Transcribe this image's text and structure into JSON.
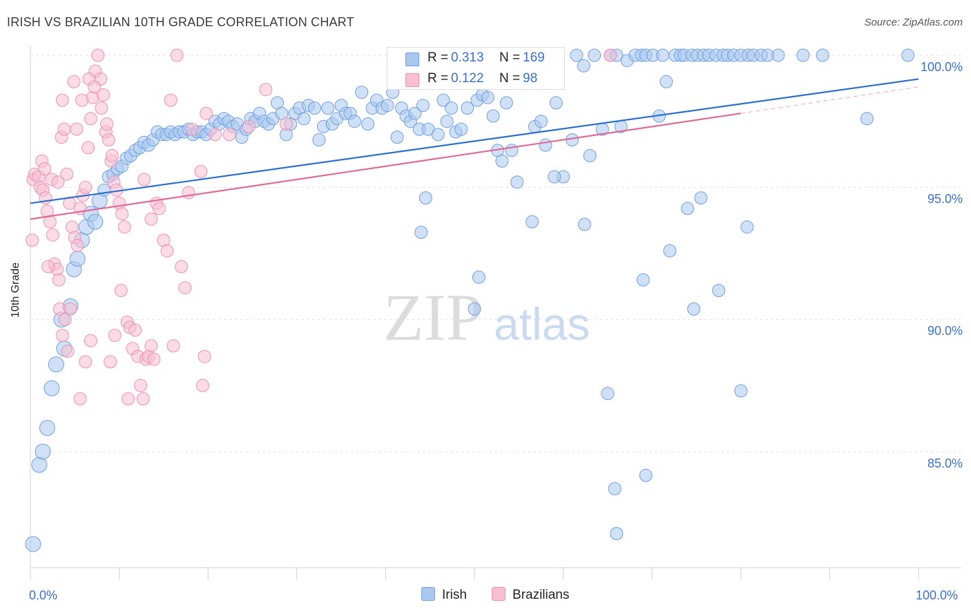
{
  "header": {
    "title": "IRISH VS BRAZILIAN 10TH GRADE CORRELATION CHART",
    "source": "Source: ZipAtlas.com"
  },
  "watermark": {
    "zip": "ZIP",
    "atlas": "atlas"
  },
  "legend": {
    "r_label": "R =",
    "n_label": "N =",
    "irish": {
      "r": "0.313",
      "n": "169"
    },
    "brazilians": {
      "r": "0.122",
      "n": "98"
    }
  },
  "colors": {
    "irish_fill": "#a9c8f0",
    "irish_stroke": "#6f9fe0",
    "irish_line": "#2a6fd0",
    "braz_fill": "#f8bfd2",
    "braz_stroke": "#ee8fb0",
    "braz_line": "#e06a95",
    "tick_text": "#3b6fcf",
    "grid": "#e3e3e3"
  },
  "chart_data": {
    "type": "scatter",
    "title": "IRISH VS BRAZILIAN 10TH GRADE CORRELATION CHART",
    "xlabel": "",
    "ylabel": "10th Grade",
    "xlim": [
      0,
      100
    ],
    "ylim": [
      80.0,
      100.8
    ],
    "x_ticks_labeled": [
      "0.0%",
      "100.0%"
    ],
    "y_ticks": [
      {
        "value": 100.0,
        "label": "100.0%"
      },
      {
        "value": 95.0,
        "label": "95.0%"
      },
      {
        "value": 90.0,
        "label": "90.0%"
      },
      {
        "value": 85.0,
        "label": "85.0%"
      }
    ],
    "legend_position": "top-center",
    "grid": "horizontal dashed",
    "series": [
      {
        "name": "Irish",
        "r": 0.313,
        "n": 169,
        "trend": {
          "x": [
            0,
            100
          ],
          "y": [
            94.4,
            99.1
          ]
        },
        "points": [
          [
            0.3,
            81.5
          ],
          [
            1.0,
            84.5
          ],
          [
            1.4,
            85.0
          ],
          [
            1.9,
            85.9
          ],
          [
            2.4,
            87.4
          ],
          [
            2.9,
            88.3
          ],
          [
            3.5,
            90.0
          ],
          [
            3.8,
            88.9
          ],
          [
            4.5,
            90.5
          ],
          [
            4.9,
            91.9
          ],
          [
            5.3,
            92.3
          ],
          [
            5.8,
            93.0
          ],
          [
            6.3,
            93.5
          ],
          [
            6.8,
            94.0
          ],
          [
            7.3,
            93.7
          ],
          [
            7.8,
            94.5
          ],
          [
            8.3,
            94.9
          ],
          [
            8.8,
            95.4
          ],
          [
            9.3,
            95.5
          ],
          [
            9.8,
            95.7
          ],
          [
            10.3,
            95.8
          ],
          [
            10.8,
            96.1
          ],
          [
            11.3,
            96.2
          ],
          [
            11.8,
            96.4
          ],
          [
            12.3,
            96.5
          ],
          [
            12.8,
            96.7
          ],
          [
            13.3,
            96.6
          ],
          [
            13.8,
            96.8
          ],
          [
            14.3,
            97.1
          ],
          [
            14.8,
            97.0
          ],
          [
            15.3,
            97.0
          ],
          [
            15.8,
            97.1
          ],
          [
            16.3,
            97.0
          ],
          [
            16.8,
            97.1
          ],
          [
            17.3,
            97.1
          ],
          [
            17.8,
            97.2
          ],
          [
            18.3,
            97.0
          ],
          [
            18.8,
            97.1
          ],
          [
            19.3,
            97.1
          ],
          [
            19.8,
            97.0
          ],
          [
            20.3,
            97.2
          ],
          [
            20.8,
            97.5
          ],
          [
            21.3,
            97.4
          ],
          [
            21.8,
            97.6
          ],
          [
            22.3,
            97.5
          ],
          [
            22.8,
            97.3
          ],
          [
            23.3,
            97.4
          ],
          [
            23.8,
            96.9
          ],
          [
            24.3,
            97.2
          ],
          [
            24.8,
            97.6
          ],
          [
            25.3,
            97.5
          ],
          [
            25.8,
            97.8
          ],
          [
            26.3,
            97.5
          ],
          [
            26.8,
            97.4
          ],
          [
            27.3,
            97.6
          ],
          [
            27.8,
            98.2
          ],
          [
            28.3,
            97.8
          ],
          [
            28.8,
            97.0
          ],
          [
            29.3,
            97.4
          ],
          [
            29.8,
            97.8
          ],
          [
            30.3,
            98.0
          ],
          [
            30.8,
            97.6
          ],
          [
            31.3,
            98.1
          ],
          [
            32.0,
            98.0
          ],
          [
            32.5,
            96.8
          ],
          [
            33.0,
            97.3
          ],
          [
            33.5,
            98.0
          ],
          [
            34.0,
            97.4
          ],
          [
            34.5,
            97.6
          ],
          [
            35.0,
            98.1
          ],
          [
            35.5,
            97.8
          ],
          [
            36.0,
            97.8
          ],
          [
            36.5,
            97.5
          ],
          [
            37.3,
            98.6
          ],
          [
            38.0,
            97.4
          ],
          [
            38.5,
            98.0
          ],
          [
            39.0,
            98.3
          ],
          [
            39.6,
            98.0
          ],
          [
            40.2,
            98.1
          ],
          [
            40.8,
            98.6
          ],
          [
            41.3,
            96.9
          ],
          [
            41.8,
            98.0
          ],
          [
            42.3,
            97.7
          ],
          [
            42.8,
            97.5
          ],
          [
            43.3,
            97.8
          ],
          [
            43.8,
            97.2
          ],
          [
            44.2,
            98.1
          ],
          [
            44.8,
            97.2
          ],
          [
            45.4,
            99.2
          ],
          [
            45.9,
            97.0
          ],
          [
            46.5,
            98.3
          ],
          [
            46.9,
            97.5
          ],
          [
            47.4,
            98.0
          ],
          [
            47.9,
            97.1
          ],
          [
            48.5,
            97.2
          ],
          [
            49.2,
            98.0
          ],
          [
            50.3,
            98.3
          ],
          [
            50.9,
            98.5
          ],
          [
            51.5,
            98.4
          ],
          [
            52.1,
            97.7
          ],
          [
            52.6,
            96.4
          ],
          [
            53.1,
            96.0
          ],
          [
            53.6,
            98.2
          ],
          [
            54.2,
            96.4
          ],
          [
            54.8,
            95.2
          ],
          [
            55.4,
            99.1
          ],
          [
            55.9,
            100.0
          ],
          [
            56.8,
            97.3
          ],
          [
            57.5,
            97.5
          ],
          [
            58.0,
            96.6
          ],
          [
            59.2,
            98.2
          ],
          [
            60.0,
            95.4
          ],
          [
            61.0,
            96.8
          ],
          [
            61.5,
            100.0
          ],
          [
            62.3,
            99.6
          ],
          [
            63.0,
            96.2
          ],
          [
            63.5,
            100.0
          ],
          [
            64.4,
            97.2
          ],
          [
            65.3,
            100.0
          ],
          [
            66.0,
            100.0
          ],
          [
            66.5,
            97.3
          ],
          [
            67.2,
            99.8
          ],
          [
            68.1,
            100.0
          ],
          [
            68.8,
            100.0
          ],
          [
            69.3,
            100.0
          ],
          [
            70.1,
            100.0
          ],
          [
            70.8,
            97.7
          ],
          [
            71.2,
            100.0
          ],
          [
            71.6,
            99.0
          ],
          [
            72.6,
            100.0
          ],
          [
            73.2,
            100.0
          ],
          [
            73.6,
            100.0
          ],
          [
            74.5,
            100.0
          ],
          [
            75.1,
            100.0
          ],
          [
            75.8,
            100.0
          ],
          [
            76.4,
            100.0
          ],
          [
            77.2,
            100.0
          ],
          [
            78.0,
            100.0
          ],
          [
            78.5,
            100.0
          ],
          [
            79.2,
            100.0
          ],
          [
            80.0,
            100.0
          ],
          [
            80.8,
            100.0
          ],
          [
            81.4,
            100.0
          ],
          [
            82.3,
            100.0
          ],
          [
            83.0,
            100.0
          ],
          [
            84.2,
            100.0
          ],
          [
            87.0,
            100.0
          ],
          [
            89.2,
            100.0
          ],
          [
            94.2,
            97.6
          ],
          [
            98.8,
            100.0
          ],
          [
            44.5,
            94.6
          ],
          [
            44.0,
            93.3
          ],
          [
            50.5,
            91.6
          ],
          [
            50.0,
            90.4
          ],
          [
            56.5,
            93.7
          ],
          [
            59.0,
            95.4
          ],
          [
            62.4,
            93.6
          ],
          [
            65.0,
            87.2
          ],
          [
            65.8,
            83.6
          ],
          [
            66.0,
            81.9
          ],
          [
            69.0,
            91.5
          ],
          [
            69.3,
            84.1
          ],
          [
            72.0,
            92.6
          ],
          [
            74.0,
            94.2
          ],
          [
            74.7,
            90.4
          ],
          [
            75.5,
            94.6
          ],
          [
            77.5,
            91.1
          ],
          [
            80.0,
            87.3
          ],
          [
            80.7,
            93.5
          ]
        ]
      },
      {
        "name": "Brazilians",
        "r": 0.122,
        "n": 98,
        "trend": {
          "x": [
            0,
            80
          ],
          "y": [
            93.8,
            97.8
          ]
        },
        "points": [
          [
            0.2,
            93.0
          ],
          [
            0.3,
            95.3
          ],
          [
            0.5,
            95.5
          ],
          [
            0.9,
            95.4
          ],
          [
            1.1,
            95.0
          ],
          [
            1.4,
            94.9
          ],
          [
            1.7,
            94.6
          ],
          [
            1.9,
            94.1
          ],
          [
            2.2,
            93.7
          ],
          [
            2.5,
            93.2
          ],
          [
            2.7,
            92.1
          ],
          [
            3.0,
            91.9
          ],
          [
            3.2,
            91.5
          ],
          [
            3.5,
            96.9
          ],
          [
            3.8,
            97.2
          ],
          [
            4.1,
            95.5
          ],
          [
            4.4,
            94.4
          ],
          [
            4.7,
            93.5
          ],
          [
            5.0,
            93.1
          ],
          [
            5.3,
            92.8
          ],
          [
            5.6,
            94.2
          ],
          [
            5.9,
            94.7
          ],
          [
            6.2,
            95.0
          ],
          [
            6.5,
            96.5
          ],
          [
            6.8,
            97.6
          ],
          [
            7.0,
            98.4
          ],
          [
            7.3,
            99.4
          ],
          [
            7.6,
            100.0
          ],
          [
            7.9,
            99.1
          ],
          [
            8.2,
            98.5
          ],
          [
            8.5,
            97.1
          ],
          [
            8.8,
            96.8
          ],
          [
            9.1,
            96.0
          ],
          [
            9.4,
            95.2
          ],
          [
            9.7,
            94.9
          ],
          [
            10.0,
            94.4
          ],
          [
            10.3,
            94.0
          ],
          [
            10.6,
            93.5
          ],
          [
            10.9,
            89.9
          ],
          [
            11.2,
            89.7
          ],
          [
            11.5,
            88.9
          ],
          [
            11.8,
            89.6
          ],
          [
            12.1,
            88.6
          ],
          [
            12.4,
            87.5
          ],
          [
            12.7,
            87.0
          ],
          [
            13.0,
            88.5
          ],
          [
            13.3,
            88.6
          ],
          [
            13.6,
            89.0
          ],
          [
            13.9,
            88.5
          ],
          [
            14.2,
            94.4
          ],
          [
            14.5,
            94.2
          ],
          [
            15.0,
            93.0
          ],
          [
            15.4,
            92.6
          ],
          [
            15.8,
            98.3
          ],
          [
            16.1,
            89.0
          ],
          [
            16.5,
            100.0
          ],
          [
            17.0,
            92.0
          ],
          [
            17.4,
            91.2
          ],
          [
            17.8,
            94.8
          ],
          [
            18.2,
            97.2
          ],
          [
            19.2,
            95.6
          ],
          [
            19.6,
            88.6
          ],
          [
            19.4,
            87.5
          ],
          [
            19.8,
            97.8
          ],
          [
            20.8,
            97.0
          ],
          [
            22.4,
            97.0
          ],
          [
            24.6,
            97.3
          ],
          [
            26.5,
            98.7
          ],
          [
            28.8,
            97.4
          ],
          [
            2.0,
            92.0
          ],
          [
            3.3,
            90.4
          ],
          [
            3.6,
            89.4
          ],
          [
            3.9,
            90.0
          ],
          [
            4.2,
            88.8
          ],
          [
            4.5,
            90.4
          ],
          [
            5.6,
            87.0
          ],
          [
            6.2,
            88.4
          ],
          [
            6.8,
            89.2
          ],
          [
            9.0,
            88.4
          ],
          [
            9.5,
            89.4
          ],
          [
            1.3,
            96.0
          ],
          [
            1.6,
            95.7
          ],
          [
            2.4,
            95.3
          ],
          [
            3.1,
            95.2
          ],
          [
            3.6,
            98.3
          ],
          [
            4.9,
            99.0
          ],
          [
            5.2,
            97.2
          ],
          [
            5.8,
            98.3
          ],
          [
            6.6,
            99.1
          ],
          [
            7.2,
            98.8
          ],
          [
            8.0,
            98.0
          ],
          [
            8.6,
            97.4
          ],
          [
            9.2,
            96.2
          ],
          [
            10.2,
            91.1
          ],
          [
            11.0,
            87.0
          ],
          [
            12.8,
            95.3
          ],
          [
            13.6,
            93.8
          ],
          [
            65.3,
            100.0
          ]
        ]
      }
    ]
  }
}
